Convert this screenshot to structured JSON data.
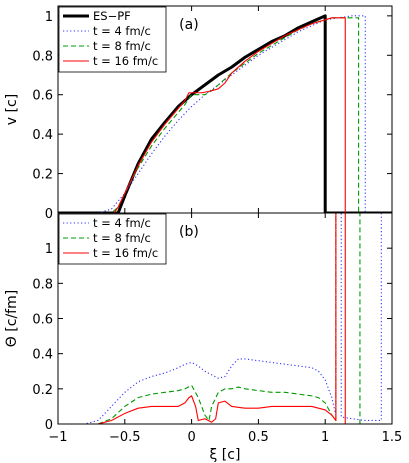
{
  "chart_data": [
    {
      "type": "line",
      "panel_label": "(a)",
      "xlabel": "",
      "ylabel": "v [c]",
      "xlim": [
        -1,
        1.5
      ],
      "ylim": [
        0,
        1.05
      ],
      "xticks": [],
      "yticks": [
        {
          "v": 0,
          "label": "0"
        },
        {
          "v": 0.2,
          "label": "0.2"
        },
        {
          "v": 0.4,
          "label": "0.4"
        },
        {
          "v": 0.6,
          "label": "0.6"
        },
        {
          "v": 0.8,
          "label": "0.8"
        },
        {
          "v": 1,
          "label": "1"
        }
      ],
      "legend_position": "top-left",
      "series": [
        {
          "name": "ES−PF",
          "color": "#000000",
          "dash": "solid",
          "width": 3,
          "x": [
            -1,
            -0.55,
            -0.5,
            -0.4,
            -0.3,
            -0.2,
            -0.1,
            0,
            0.1,
            0.2,
            0.3,
            0.4,
            0.5,
            0.6,
            0.7,
            0.8,
            0.9,
            1.0,
            1.0,
            1.5
          ],
          "y": [
            0,
            0,
            0.087,
            0.25,
            0.375,
            0.46,
            0.54,
            0.6,
            0.65,
            0.7,
            0.74,
            0.79,
            0.83,
            0.87,
            0.9,
            0.94,
            0.97,
            1.0,
            0,
            0
          ]
        },
        {
          "name": "t = 4 fm/c",
          "color": "#3333ff",
          "dash": "dotted",
          "width": 1.1,
          "x": [
            -1,
            -0.7,
            -0.6,
            -0.5,
            -0.4,
            -0.3,
            -0.2,
            -0.1,
            0,
            0.1,
            0.2,
            0.3,
            0.4,
            0.5,
            0.6,
            0.7,
            0.8,
            0.9,
            1.0,
            1.1,
            1.2,
            1.3,
            1.3,
            1.5
          ],
          "y": [
            0,
            0,
            0.02,
            0.1,
            0.2,
            0.3,
            0.39,
            0.47,
            0.54,
            0.6,
            0.65,
            0.7,
            0.75,
            0.8,
            0.84,
            0.88,
            0.92,
            0.95,
            0.98,
            0.99,
            1.0,
            1.0,
            0,
            0
          ]
        },
        {
          "name": "t = 8 fm/c",
          "color": "#009900",
          "dash": "dashed",
          "width": 1.1,
          "x": [
            -1,
            -0.6,
            -0.55,
            -0.5,
            -0.4,
            -0.3,
            -0.2,
            -0.1,
            -0.05,
            0,
            0.05,
            0.1,
            0.15,
            0.2,
            0.3,
            0.4,
            0.5,
            0.6,
            0.7,
            0.8,
            0.9,
            1.0,
            1.05,
            1.1,
            1.2,
            1.25,
            1.25,
            1.5
          ],
          "y": [
            0,
            0,
            0.03,
            0.1,
            0.23,
            0.34,
            0.43,
            0.51,
            0.55,
            0.6,
            0.6,
            0.6,
            0.62,
            0.65,
            0.71,
            0.76,
            0.81,
            0.85,
            0.89,
            0.93,
            0.96,
            0.98,
            0.99,
            0.99,
            0.99,
            0.99,
            0,
            0
          ]
        },
        {
          "name": "t = 16 fm/c",
          "color": "#ff0000",
          "dash": "solid",
          "width": 1.1,
          "x": [
            -1,
            -0.58,
            -0.55,
            -0.5,
            -0.4,
            -0.3,
            -0.2,
            -0.1,
            -0.05,
            -0.02,
            0.02,
            0.08,
            0.15,
            0.2,
            0.25,
            0.3,
            0.4,
            0.5,
            0.6,
            0.7,
            0.8,
            0.9,
            1.0,
            1.05,
            1.1,
            1.15,
            1.15,
            1.5
          ],
          "y": [
            0,
            0,
            0.03,
            0.1,
            0.24,
            0.36,
            0.45,
            0.53,
            0.57,
            0.61,
            0.61,
            0.61,
            0.62,
            0.63,
            0.66,
            0.71,
            0.77,
            0.82,
            0.86,
            0.9,
            0.93,
            0.96,
            0.98,
            0.99,
            0.99,
            0.99,
            0,
            0
          ]
        }
      ]
    },
    {
      "type": "line",
      "panel_label": "(b)",
      "xlabel": "ξ [c]",
      "ylabel": "Θ [c/fm]",
      "xlim": [
        -1,
        1.5
      ],
      "ylim": [
        0,
        1.2
      ],
      "xticks": [
        {
          "v": -1,
          "label": "−1"
        },
        {
          "v": -0.5,
          "label": "−0.5"
        },
        {
          "v": 0,
          "label": "0"
        },
        {
          "v": 0.5,
          "label": "0.5"
        },
        {
          "v": 1,
          "label": "1"
        },
        {
          "v": 1.5,
          "label": "1.5"
        }
      ],
      "yticks": [
        {
          "v": 0,
          "label": "0"
        },
        {
          "v": 0.2,
          "label": "0.2"
        },
        {
          "v": 0.4,
          "label": "0.4"
        },
        {
          "v": 0.6,
          "label": "0.6"
        },
        {
          "v": 0.8,
          "label": "0.8"
        },
        {
          "v": 1,
          "label": "1"
        }
      ],
      "legend_position": "top-left",
      "series": [
        {
          "name": "t = 4 fm/c",
          "color": "#3333ff",
          "dash": "dotted",
          "width": 1.1,
          "x": [
            -1,
            -0.8,
            -0.7,
            -0.6,
            -0.5,
            -0.4,
            -0.3,
            -0.2,
            -0.1,
            -0.05,
            0,
            0.05,
            0.1,
            0.15,
            0.2,
            0.25,
            0.3,
            0.35,
            0.4,
            0.5,
            0.6,
            0.7,
            0.8,
            0.9,
            0.95,
            1.0,
            1.05,
            1.08,
            1.08,
            1.1,
            1.12,
            1.12,
            1.2,
            1.3,
            1.4,
            1.42,
            1.42,
            1.5
          ],
          "y": [
            0,
            0,
            0.02,
            0.1,
            0.18,
            0.24,
            0.27,
            0.29,
            0.32,
            0.34,
            0.35,
            0.33,
            0.3,
            0.28,
            0.26,
            0.27,
            0.33,
            0.37,
            0.37,
            0.36,
            0.35,
            0.34,
            0.33,
            0.32,
            0.3,
            0.25,
            0.15,
            0.05,
            1.25,
            1.25,
            1.25,
            0.04,
            0.03,
            0.02,
            0.02,
            0.02,
            1.25,
            1.25
          ]
        },
        {
          "name": "t = 8 fm/c",
          "color": "#009900",
          "dash": "dashed",
          "width": 1.1,
          "x": [
            -1,
            -0.7,
            -0.6,
            -0.5,
            -0.4,
            -0.3,
            -0.2,
            -0.1,
            -0.05,
            0,
            0.05,
            0.1,
            0.13,
            0.15,
            0.2,
            0.25,
            0.3,
            0.35,
            0.4,
            0.5,
            0.6,
            0.7,
            0.8,
            0.9,
            0.95,
            1.0,
            1.05,
            1.08,
            1.08,
            1.15,
            1.26,
            1.26,
            1.5
          ],
          "y": [
            0,
            0,
            0.03,
            0.1,
            0.15,
            0.17,
            0.18,
            0.19,
            0.2,
            0.22,
            0.15,
            0.05,
            0.02,
            0.1,
            0.18,
            0.2,
            0.2,
            0.21,
            0.2,
            0.19,
            0.18,
            0.18,
            0.17,
            0.16,
            0.15,
            0.12,
            0.05,
            0.02,
            1.25,
            1.25,
            1.25,
            0,
            0
          ]
        },
        {
          "name": "t = 16 fm/c",
          "color": "#ff0000",
          "dash": "solid",
          "width": 1.1,
          "x": [
            -1,
            -0.7,
            -0.6,
            -0.5,
            -0.4,
            -0.3,
            -0.2,
            -0.1,
            -0.05,
            -0.02,
            0,
            0.03,
            0.05,
            0.1,
            0.15,
            0.18,
            0.2,
            0.25,
            0.3,
            0.4,
            0.5,
            0.6,
            0.7,
            0.8,
            0.9,
            0.95,
            1.0,
            1.05,
            1.08,
            1.08,
            1.12,
            1.15,
            1.15,
            1.5
          ],
          "y": [
            0,
            0,
            0.02,
            0.06,
            0.09,
            0.1,
            0.1,
            0.1,
            0.12,
            0.15,
            0.16,
            0.1,
            0.02,
            0.03,
            0.01,
            0.03,
            0.12,
            0.13,
            0.1,
            0.09,
            0.09,
            0.1,
            0.1,
            0.1,
            0.1,
            0.09,
            0.08,
            0.05,
            0.02,
            1.25,
            1.25,
            1.25,
            0,
            0
          ]
        }
      ]
    }
  ]
}
